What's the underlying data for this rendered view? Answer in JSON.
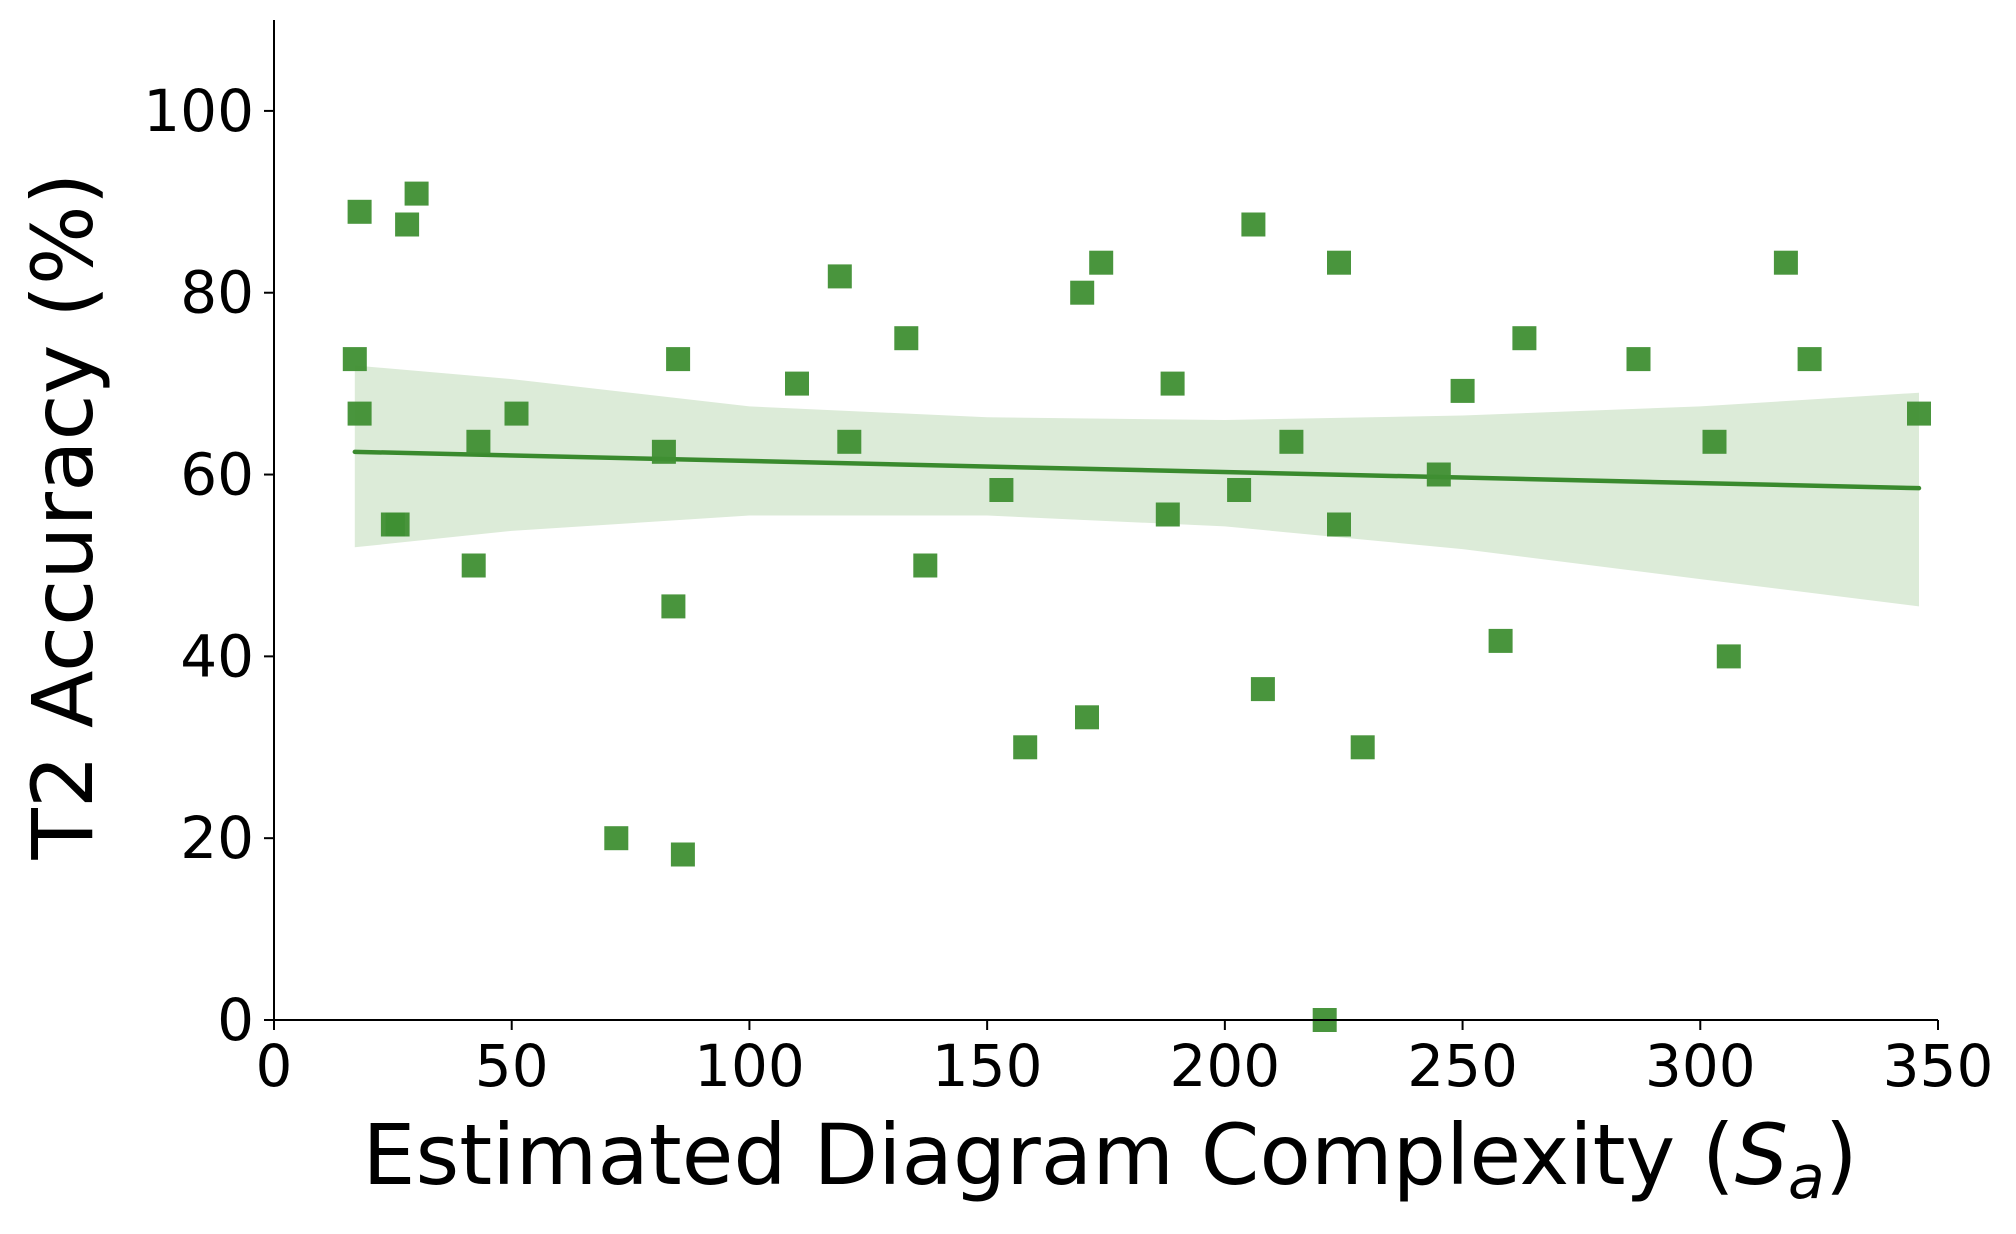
{
  "chart_data": {
    "type": "scatter",
    "title": "",
    "xlabel": "Estimated Diagram Complexity (",
    "xlabel_symbol": "S",
    "xlabel_subscript": "a",
    "xlabel_suffix": ")",
    "ylabel": "T2 Accuracy (%)",
    "xlim": [
      0,
      350
    ],
    "ylim": [
      0,
      110
    ],
    "x_ticks": [
      0,
      50,
      100,
      150,
      200,
      250,
      300,
      350
    ],
    "y_ticks": [
      0,
      20,
      40,
      60,
      80,
      100
    ],
    "grid": false,
    "legend": "none",
    "colors": {
      "points": "#3f8f33",
      "regression_line": "#3a8a2e",
      "confidence_band": "#dcebd8"
    },
    "marker": "square",
    "points": [
      {
        "x": 17,
        "y": 72.7
      },
      {
        "x": 18,
        "y": 88.9
      },
      {
        "x": 18,
        "y": 66.7
      },
      {
        "x": 25,
        "y": 54.5
      },
      {
        "x": 26,
        "y": 54.5
      },
      {
        "x": 28,
        "y": 87.5
      },
      {
        "x": 30,
        "y": 90.9
      },
      {
        "x": 42,
        "y": 50.0
      },
      {
        "x": 43,
        "y": 63.6
      },
      {
        "x": 51,
        "y": 66.7
      },
      {
        "x": 72,
        "y": 20.0
      },
      {
        "x": 82,
        "y": 62.5
      },
      {
        "x": 84,
        "y": 45.5
      },
      {
        "x": 85,
        "y": 72.7
      },
      {
        "x": 86,
        "y": 18.2
      },
      {
        "x": 110,
        "y": 70.0
      },
      {
        "x": 119,
        "y": 81.8
      },
      {
        "x": 121,
        "y": 63.6
      },
      {
        "x": 133,
        "y": 75.0
      },
      {
        "x": 137,
        "y": 50.0
      },
      {
        "x": 153,
        "y": 58.3
      },
      {
        "x": 158,
        "y": 30.0
      },
      {
        "x": 170,
        "y": 80.0
      },
      {
        "x": 171,
        "y": 33.3
      },
      {
        "x": 174,
        "y": 83.3
      },
      {
        "x": 188,
        "y": 55.6
      },
      {
        "x": 189,
        "y": 70.0
      },
      {
        "x": 203,
        "y": 58.3
      },
      {
        "x": 206,
        "y": 87.5
      },
      {
        "x": 208,
        "y": 36.4
      },
      {
        "x": 214,
        "y": 63.6
      },
      {
        "x": 221,
        "y": 0.0
      },
      {
        "x": 224,
        "y": 83.3
      },
      {
        "x": 224,
        "y": 54.5
      },
      {
        "x": 229,
        "y": 30.0
      },
      {
        "x": 245,
        "y": 60.0
      },
      {
        "x": 250,
        "y": 69.2
      },
      {
        "x": 258,
        "y": 41.7
      },
      {
        "x": 263,
        "y": 75.0
      },
      {
        "x": 287,
        "y": 72.7
      },
      {
        "x": 303,
        "y": 63.6
      },
      {
        "x": 306,
        "y": 40.0
      },
      {
        "x": 318,
        "y": 83.3
      },
      {
        "x": 323,
        "y": 72.7
      },
      {
        "x": 346,
        "y": 66.7
      }
    ],
    "regression": {
      "x": [
        17,
        346
      ],
      "y": [
        62.5,
        58.5
      ]
    },
    "confidence_band": {
      "x": [
        17,
        50,
        100,
        150,
        200,
        250,
        300,
        346
      ],
      "upper": [
        72.0,
        70.5,
        67.5,
        66.3,
        66.0,
        66.5,
        67.5,
        69.0
      ],
      "lower": [
        52.0,
        53.8,
        55.5,
        55.5,
        54.3,
        51.8,
        48.5,
        45.5
      ]
    }
  }
}
